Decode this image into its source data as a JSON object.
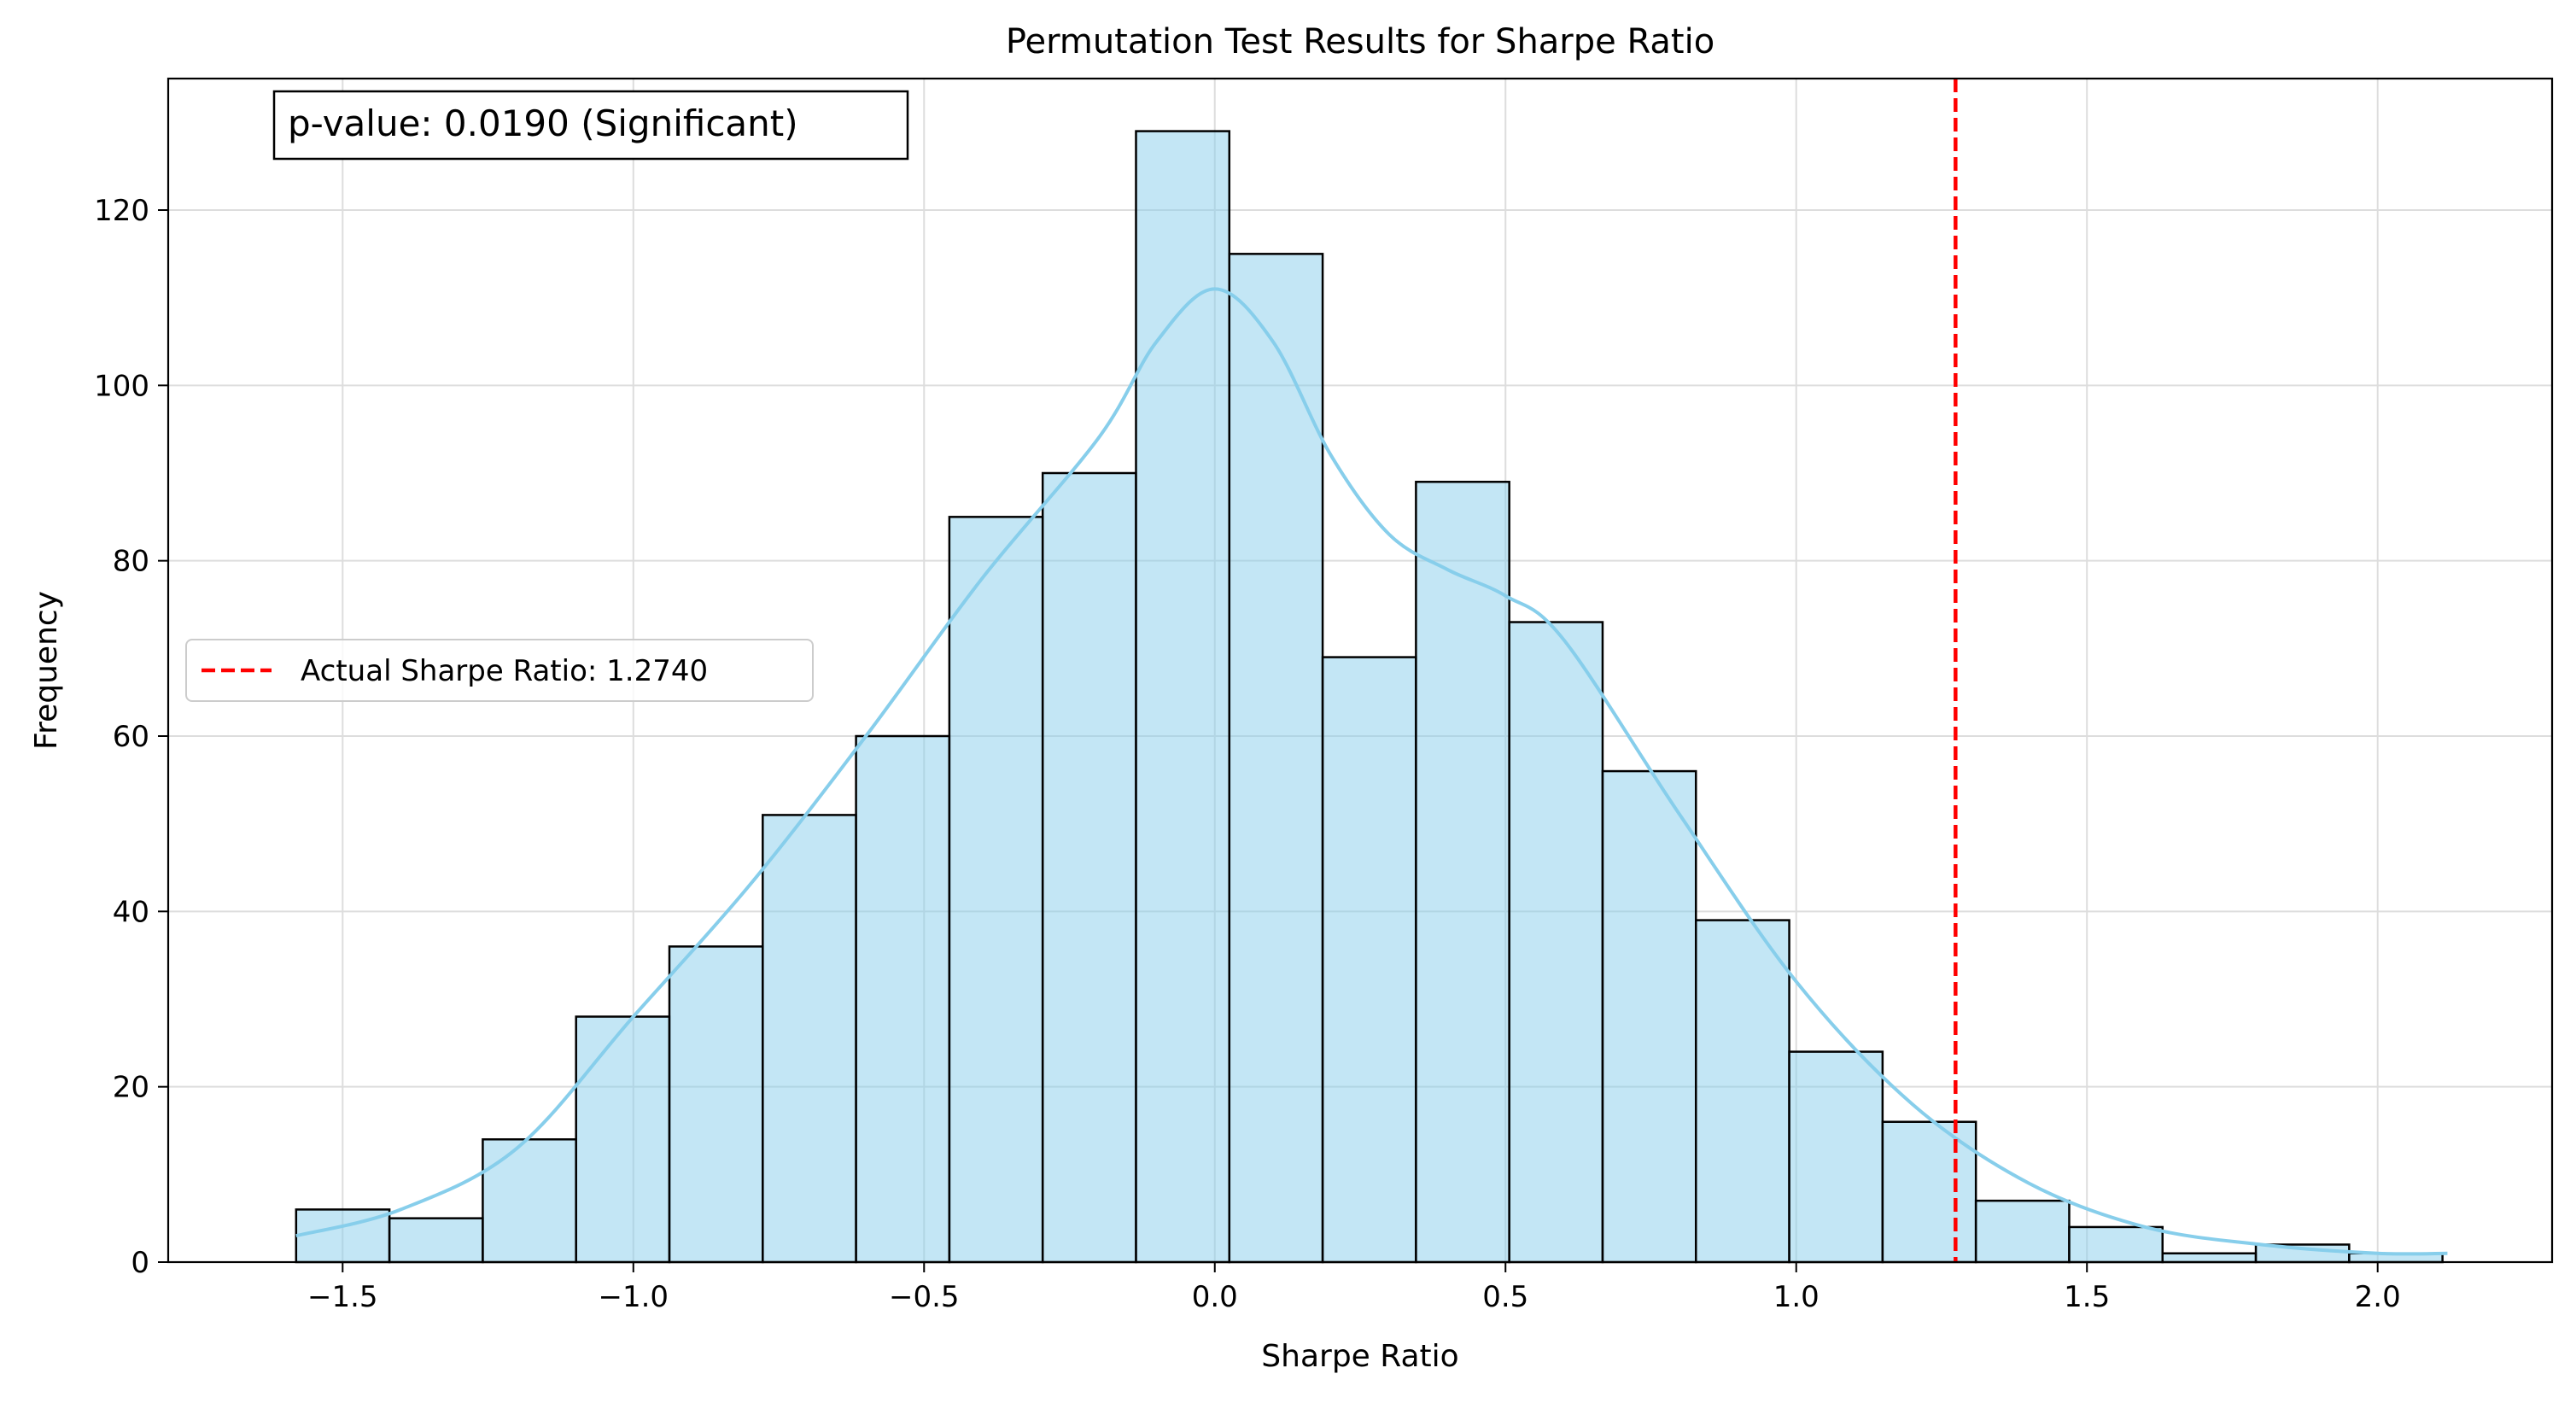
{
  "chart_data": {
    "type": "bar",
    "title": "Permutation Test Results for Sharpe Ratio",
    "xlabel": "Sharpe Ratio",
    "ylabel": "Frequency",
    "xlim": [
      -1.8,
      2.3
    ],
    "ylim": [
      0,
      135
    ],
    "xticks": [
      -1.5,
      -1.0,
      -0.5,
      0.0,
      0.5,
      1.0,
      1.5,
      2.0
    ],
    "xtick_labels": [
      "−1.5",
      "−1.0",
      "−0.5",
      "0.0",
      "0.5",
      "1.0",
      "1.5",
      "2.0"
    ],
    "yticks": [
      0,
      20,
      40,
      60,
      80,
      100,
      120
    ],
    "ytick_labels": [
      "0",
      "20",
      "40",
      "60",
      "80",
      "100",
      "120"
    ],
    "grid": true,
    "histogram": {
      "bin_start": -1.58,
      "bin_width": 0.1605,
      "counts": [
        6,
        5,
        14,
        28,
        36,
        51,
        60,
        85,
        90,
        129,
        115,
        69,
        89,
        73,
        56,
        39,
        24,
        16,
        7,
        4,
        1,
        2,
        1
      ],
      "fill_color": "#87ceeb",
      "fill_opacity": 0.5,
      "edge_color": "#000000"
    },
    "kde_curve": {
      "color": "#87ceeb",
      "x": [
        -1.58,
        -1.4,
        -1.2,
        -1.0,
        -0.8,
        -0.6,
        -0.4,
        -0.2,
        -0.1,
        0.0,
        0.1,
        0.2,
        0.3,
        0.4,
        0.5,
        0.6,
        0.8,
        1.0,
        1.2,
        1.4,
        1.6,
        1.8,
        2.0,
        2.12
      ],
      "y": [
        3,
        6,
        13,
        28,
        43,
        60,
        78,
        94,
        105,
        111,
        105,
        92,
        83,
        79,
        76,
        71,
        51,
        32,
        18,
        9,
        4,
        2,
        1,
        1
      ]
    },
    "reference_line": {
      "x": 1.274,
      "color": "#ff0000",
      "style": "dashed",
      "label": "Actual Sharpe Ratio: 1.2740"
    },
    "annotation": "p-value: 0.0190 (Significant)",
    "legend_placement": "center-left"
  }
}
